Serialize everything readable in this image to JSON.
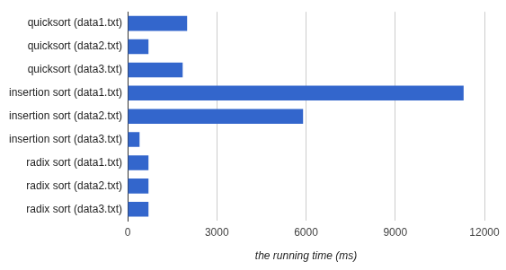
{
  "chart_data": {
    "type": "bar",
    "orientation": "horizontal",
    "x_label": "the running time (ms)",
    "categories": [
      "quicksort (data1.txt)",
      "quicksort (data2.txt)",
      "quicksort (data3.txt)",
      "insertion sort (data1.txt)",
      "insertion sort (data2.txt)",
      "insertion sort (data3.txt)",
      "radix sort (data1.txt)",
      "radix sort (data2.txt)",
      "radix sort (data3.txt)"
    ],
    "values": [
      2000,
      700,
      1850,
      11300,
      5900,
      400,
      700,
      700,
      700
    ],
    "color": "#3366cc",
    "xlim": [
      0,
      12000
    ],
    "xticks": [
      0,
      3000,
      6000,
      9000,
      12000
    ],
    "grid": true
  }
}
